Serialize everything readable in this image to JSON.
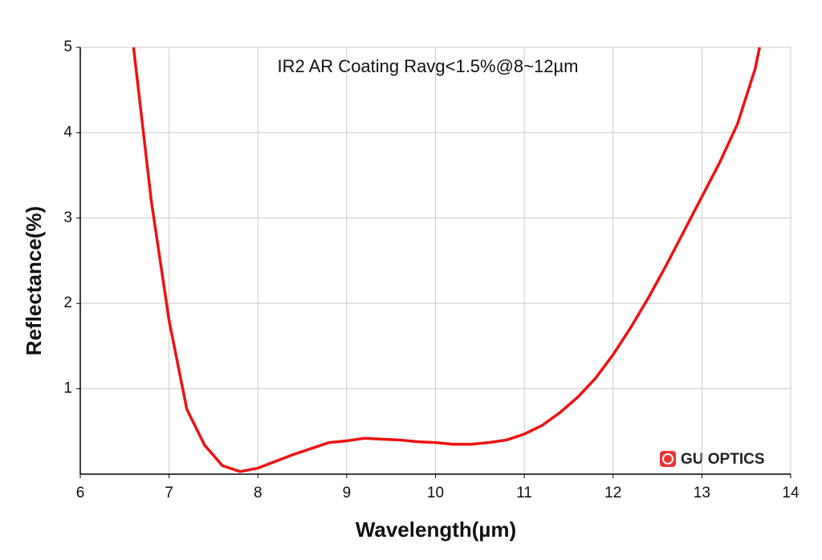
{
  "chart_data": {
    "type": "line",
    "title": "IR2 AR Coating Ravg<1.5%@8~12µm",
    "xlabel": "Wavelength(µm)",
    "ylabel": "Reflectance(%)",
    "annotation": "GU OPTICS",
    "x": [
      6.6,
      6.8,
      7.0,
      7.2,
      7.4,
      7.6,
      7.8,
      8.0,
      8.2,
      8.4,
      8.6,
      8.8,
      9.0,
      9.2,
      9.4,
      9.6,
      9.8,
      10.0,
      10.2,
      10.4,
      10.6,
      10.8,
      11.0,
      11.2,
      11.4,
      11.6,
      11.8,
      12.0,
      12.2,
      12.4,
      12.6,
      12.8,
      13.0,
      13.2,
      13.4,
      13.6,
      13.65
    ],
    "series": [
      {
        "name": "Reflectance",
        "color": "#ee1111",
        "values": [
          5.0,
          3.2,
          1.8,
          0.76,
          0.34,
          0.1,
          0.03,
          0.07,
          0.15,
          0.23,
          0.3,
          0.37,
          0.39,
          0.42,
          0.41,
          0.4,
          0.38,
          0.37,
          0.35,
          0.35,
          0.37,
          0.4,
          0.47,
          0.57,
          0.72,
          0.9,
          1.12,
          1.4,
          1.72,
          2.07,
          2.45,
          2.85,
          3.25,
          3.65,
          4.1,
          4.75,
          5.0
        ]
      }
    ],
    "xlim": [
      6,
      14
    ],
    "xticks": [
      6,
      7,
      8,
      9,
      10,
      11,
      12,
      13,
      14
    ],
    "ylim": [
      0,
      5
    ],
    "yticks": [
      1,
      2,
      3,
      4,
      5
    ],
    "grid": true
  }
}
